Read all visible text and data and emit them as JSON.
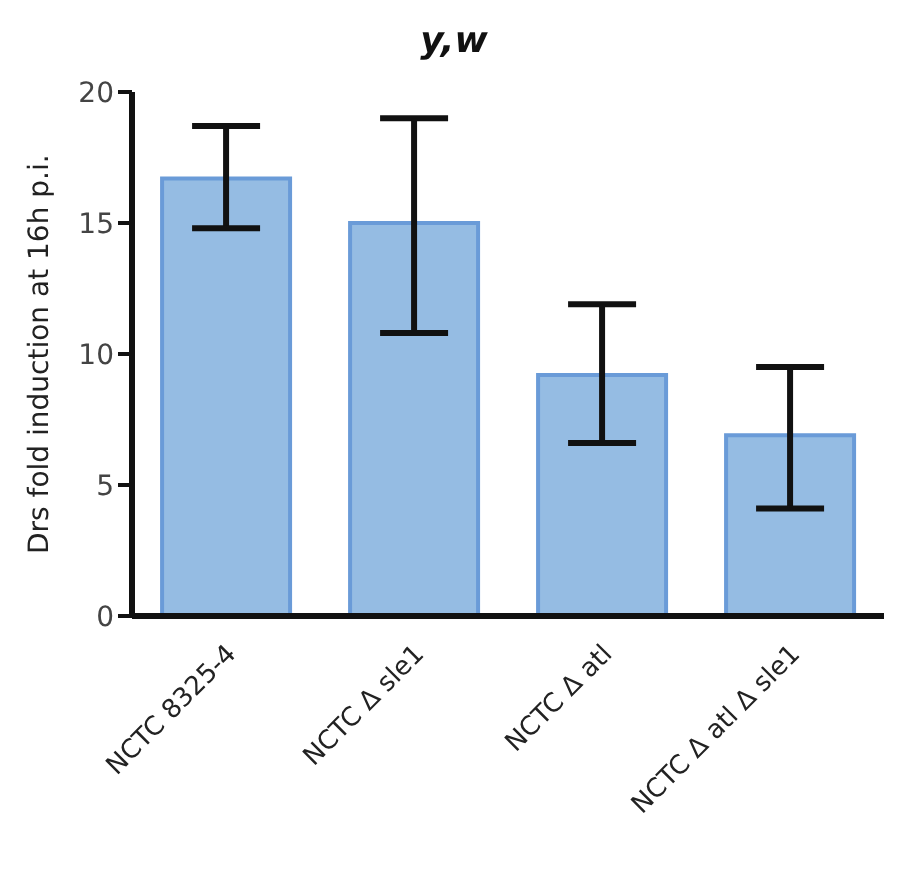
{
  "chart_data": {
    "type": "bar",
    "title": "y,w",
    "ylabel": "Drs fold induction at 16h p.i.",
    "categories": [
      "NCTC 8325-4",
      "NCTC Δ sle1",
      "NCTC Δ atl",
      "NCTC Δ atl Δ sle1"
    ],
    "values": [
      16.7,
      15.0,
      9.2,
      6.9
    ],
    "errors": [
      [
        14.8,
        18.7
      ],
      [
        10.8,
        19.0
      ],
      [
        6.6,
        11.9
      ],
      [
        4.1,
        9.5
      ]
    ],
    "color": "#95bce3",
    "ylim": [
      0,
      20
    ],
    "yticks": [
      0,
      5,
      10,
      15,
      20
    ],
    "grid": false,
    "legend": false
  }
}
